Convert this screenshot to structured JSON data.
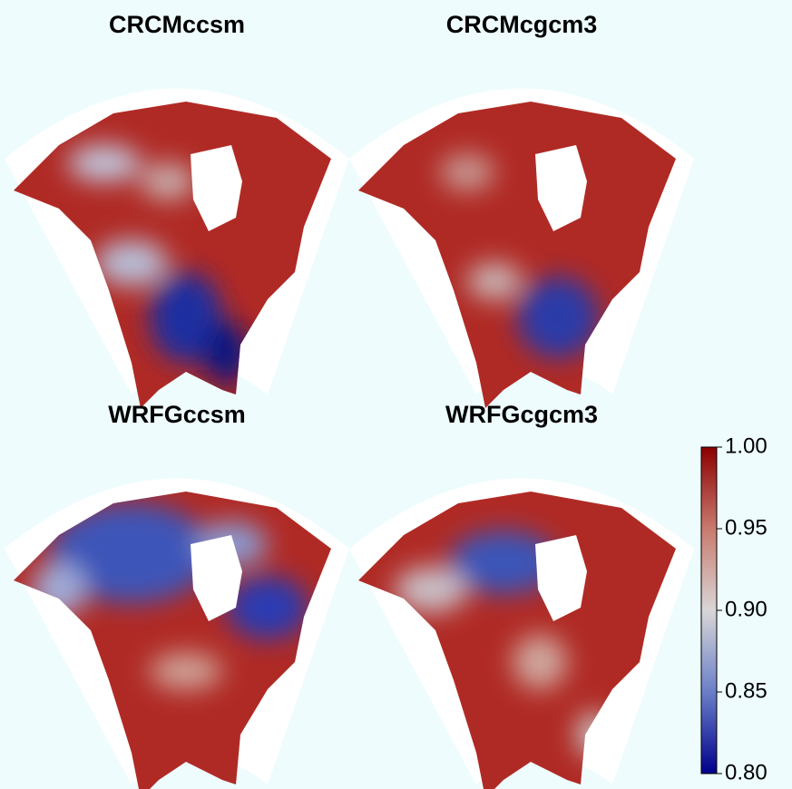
{
  "panels": [
    {
      "title": "CRCMccsm"
    },
    {
      "title": "CRCMcgcm3"
    },
    {
      "title": "WRFGccsm"
    },
    {
      "title": "WRFGcgcm3"
    }
  ],
  "colorbar": {
    "lim": [
      0.8,
      1.0
    ],
    "ticks": [
      {
        "value": 1.0,
        "label": "1.00"
      },
      0.95,
      {
        "value": 0.9,
        "label": "0.90"
      },
      0.85,
      {
        "value": 0.8,
        "label": "0.80"
      }
    ],
    "colors": [
      "#00008b",
      "#6a7fc8",
      "#d9d6d6",
      "#c97a6e",
      "#8b0000"
    ]
  }
}
